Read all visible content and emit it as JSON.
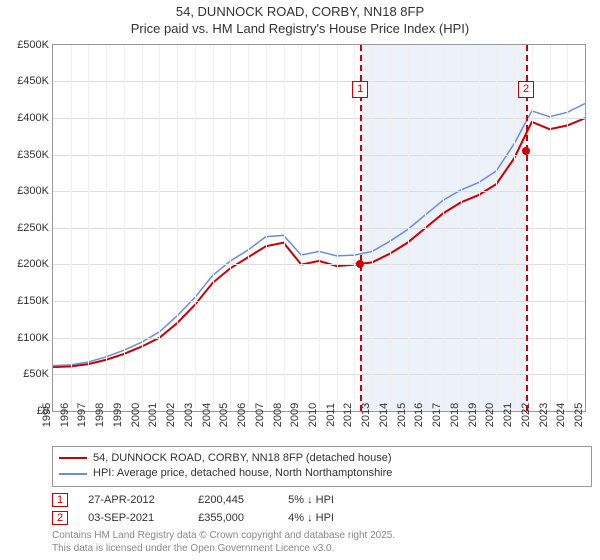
{
  "title": {
    "line1": "54, DUNNOCK ROAD, CORBY, NN18 8FP",
    "line2": "Price paid vs. HM Land Registry's House Price Index (HPI)"
  },
  "chart": {
    "type": "line",
    "background_color": "#ffffff",
    "grid_color": "#dddddd",
    "axis_color": "#999999",
    "y": {
      "min": 0,
      "max": 500000,
      "step": 50000,
      "prefix": "£",
      "suffix_k": "K"
    },
    "x": {
      "years": [
        1995,
        1996,
        1997,
        1998,
        1999,
        2000,
        2001,
        2002,
        2003,
        2004,
        2005,
        2006,
        2007,
        2008,
        2009,
        2010,
        2011,
        2012,
        2013,
        2014,
        2015,
        2016,
        2017,
        2018,
        2019,
        2020,
        2021,
        2022,
        2023,
        2024,
        2025
      ]
    },
    "shade": {
      "from_year": 2012.32,
      "to_year": 2021.67,
      "color": "rgba(200,215,240,0.35)"
    },
    "series": [
      {
        "id": "price_paid",
        "label": "54, DUNNOCK ROAD, CORBY, NN18 8FP (detached house)",
        "color": "#cc0000",
        "line_width": 2,
        "points_by_year": {
          "1995": 60000,
          "1996": 61000,
          "1997": 64000,
          "1998": 70000,
          "1999": 78000,
          "2000": 88000,
          "2001": 100000,
          "2002": 120000,
          "2003": 145000,
          "2004": 175000,
          "2005": 195000,
          "2006": 210000,
          "2007": 225000,
          "2008": 230000,
          "2009": 200000,
          "2010": 205000,
          "2011": 198000,
          "2012": 200000,
          "2013": 203000,
          "2014": 215000,
          "2015": 230000,
          "2016": 250000,
          "2017": 270000,
          "2018": 285000,
          "2019": 295000,
          "2020": 310000,
          "2021": 345000,
          "2022": 395000,
          "2023": 385000,
          "2024": 390000,
          "2025": 400000
        }
      },
      {
        "id": "hpi",
        "label": "HPI: Average price, detached house, North Northamptonshire",
        "color": "#6a8fd8",
        "line_width": 1.5,
        "points_by_year": {
          "1995": 62000,
          "1996": 63000,
          "1997": 67000,
          "1998": 74000,
          "1999": 83000,
          "2000": 94000,
          "2001": 108000,
          "2002": 130000,
          "2003": 155000,
          "2004": 185000,
          "2005": 205000,
          "2006": 220000,
          "2007": 238000,
          "2008": 240000,
          "2009": 213000,
          "2010": 218000,
          "2011": 212000,
          "2012": 213000,
          "2013": 218000,
          "2014": 232000,
          "2015": 248000,
          "2016": 268000,
          "2017": 288000,
          "2018": 302000,
          "2019": 312000,
          "2020": 328000,
          "2021": 365000,
          "2022": 410000,
          "2023": 402000,
          "2024": 408000,
          "2025": 420000
        }
      }
    ],
    "markers": [
      {
        "id": "1",
        "year": 2012.32,
        "y_value": 200445,
        "box_top_pct": 10
      },
      {
        "id": "2",
        "year": 2021.67,
        "y_value": 355000,
        "box_top_pct": 10
      }
    ]
  },
  "legend": {
    "rows": [
      {
        "color": "#cc0000",
        "width": 2,
        "text": "54, DUNNOCK ROAD, CORBY, NN18 8FP (detached house)"
      },
      {
        "color": "#6a8fd8",
        "width": 1.5,
        "text": "HPI: Average price, detached house, North Northamptonshire"
      }
    ]
  },
  "sales": [
    {
      "marker": "1",
      "date": "27-APR-2012",
      "price": "£200,445",
      "delta": "5% ↓ HPI"
    },
    {
      "marker": "2",
      "date": "03-SEP-2021",
      "price": "£355,000",
      "delta": "4% ↓ HPI"
    }
  ],
  "footer": {
    "line1": "Contains HM Land Registry data © Crown copyright and database right 2025.",
    "line2": "This data is licensed under the Open Government Licence v3.0."
  }
}
